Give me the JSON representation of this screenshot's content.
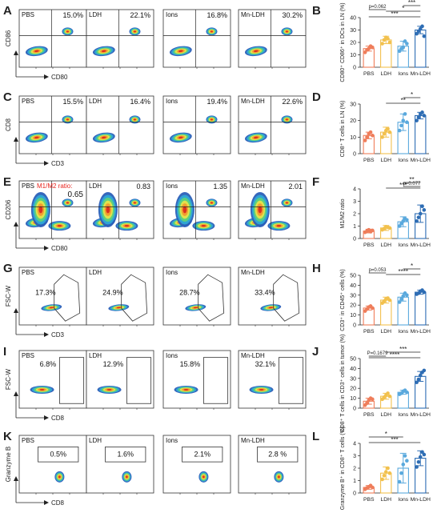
{
  "colors": {
    "PBS": "#ef7d5a",
    "LDH": "#f2c14e",
    "Ions": "#5aa9dd",
    "Mn-LDH": "#2e6db4",
    "density": [
      "#2b5fb8",
      "#2fa8d6",
      "#5fd37a",
      "#e7e14a",
      "#f29a2e",
      "#d92b1f"
    ]
  },
  "groups": [
    "PBS",
    "LDH",
    "Ions",
    "Mn-LDH"
  ],
  "flow_rows": [
    {
      "letter": "A",
      "ylabel": "CD86",
      "xlabel": "CD80",
      "gate": "quadrant",
      "values": [
        "15.0%",
        "22.1%",
        "16.8%",
        "30.2%"
      ]
    },
    {
      "letter": "C",
      "ylabel": "CD8",
      "xlabel": "CD3",
      "gate": "quadrant",
      "values": [
        "15.5%",
        "16.4%",
        "19.4%",
        "22.6%"
      ]
    },
    {
      "letter": "E",
      "ylabel": "CD206",
      "xlabel": "CD80",
      "gate": "quadrant",
      "prefix": "M1/M2 ratio:",
      "values": [
        "0.65",
        "0.83",
        "1.35",
        "2.01"
      ]
    },
    {
      "letter": "G",
      "ylabel": "FSC-W",
      "xlabel": "CD3",
      "gate": "polygon",
      "values": [
        "17.3%",
        "24.9%",
        "28.7%",
        "33.4%"
      ]
    },
    {
      "letter": "I",
      "ylabel": "FSC-W",
      "xlabel": "CD8",
      "gate": "rect",
      "values": [
        "6.8%",
        "12.9%",
        "15.8%",
        "32.1%"
      ]
    },
    {
      "letter": "K",
      "ylabel": "Granzyme B",
      "xlabel": "CD8",
      "gate": "rect_top",
      "values": [
        "0.5%",
        "1.6%",
        "2.1%",
        "2.8 %"
      ]
    }
  ],
  "chart_data": [
    {
      "letter": "B",
      "type": "bar",
      "ylabel": "CD80⁺ CD86⁺ in DCs in LN (%)",
      "ylim": [
        0,
        40
      ],
      "yticks": [
        0,
        10,
        20,
        30,
        40
      ],
      "categories": [
        "PBS",
        "LDH",
        "Ions",
        "Mn-LDH"
      ],
      "means": [
        15,
        22,
        17,
        30
      ],
      "err": [
        2,
        3,
        4,
        3
      ],
      "points": [
        [
          12,
          14,
          15,
          17,
          16
        ],
        [
          19,
          22,
          24,
          23,
          20
        ],
        [
          13,
          15,
          16,
          21,
          19
        ],
        [
          27,
          29,
          31,
          33,
          25
        ]
      ],
      "annotations": [
        {
          "a": 0,
          "b": 3,
          "label": "***"
        },
        {
          "a": 1,
          "b": 3,
          "label": "*"
        },
        {
          "a": 2,
          "b": 3,
          "label": "***"
        },
        {
          "a": 0,
          "b": 1,
          "label": "p=0.062"
        }
      ]
    },
    {
      "letter": "D",
      "type": "bar",
      "ylabel": "CD8⁺ T cells in LN (%)",
      "ylim": [
        0,
        30
      ],
      "yticks": [
        0,
        10,
        20,
        30
      ],
      "categories": [
        "PBS",
        "LDH",
        "Ions",
        "Mn-LDH"
      ],
      "means": [
        11,
        13,
        19,
        23
      ],
      "err": [
        2,
        3,
        5,
        2
      ],
      "points": [
        [
          8,
          10,
          12,
          13,
          11
        ],
        [
          10,
          12,
          14,
          15,
          13
        ],
        [
          14,
          17,
          20,
          24,
          19
        ],
        [
          20,
          22,
          24,
          25,
          23
        ]
      ],
      "annotations": [
        {
          "a": 1,
          "b": 3,
          "label": "**"
        },
        {
          "a": 2,
          "b": 3,
          "label": "*"
        }
      ]
    },
    {
      "letter": "F",
      "type": "bar",
      "ylabel": "M1/M2 ratio",
      "ylim": [
        0,
        4
      ],
      "yticks": [
        0,
        1,
        2,
        3,
        4
      ],
      "categories": [
        "PBS",
        "LDH",
        "Ions",
        "Mn-LDH"
      ],
      "means": [
        0.6,
        0.85,
        1.35,
        2.0
      ],
      "err": [
        0.15,
        0.2,
        0.4,
        0.7
      ],
      "points": [
        [
          0.5,
          0.6,
          0.7,
          0.55,
          0.65
        ],
        [
          0.7,
          0.8,
          0.95,
          0.9,
          0.85
        ],
        [
          1.0,
          1.2,
          1.4,
          1.6,
          1.5
        ],
        [
          1.4,
          1.7,
          2.0,
          2.6,
          2.3
        ]
      ],
      "annotations": [
        {
          "a": 1,
          "b": 3,
          "label": "***"
        },
        {
          "a": 2,
          "b": 3,
          "label": "**"
        },
        {
          "a": 2,
          "b": 3,
          "label": "p=0.077"
        }
      ]
    },
    {
      "letter": "H",
      "type": "bar",
      "ylabel": "CD3⁺ in CD45⁺ cells (%)",
      "ylim": [
        0,
        50
      ],
      "yticks": [
        0,
        10,
        20,
        30,
        40,
        50
      ],
      "categories": [
        "PBS",
        "LDH",
        "Ions",
        "Mn-LDH"
      ],
      "means": [
        17,
        25,
        28,
        33
      ],
      "err": [
        2,
        3,
        4,
        2
      ],
      "points": [
        [
          14,
          16,
          18,
          19,
          17
        ],
        [
          22,
          24,
          26,
          27,
          25
        ],
        [
          23,
          26,
          29,
          32,
          30
        ],
        [
          31,
          32,
          34,
          35,
          33
        ]
      ],
      "annotations": [
        {
          "a": 1,
          "b": 3,
          "label": "****"
        },
        {
          "a": 2,
          "b": 3,
          "label": "*"
        },
        {
          "a": 0,
          "b": 1,
          "label": "p=0.053"
        }
      ]
    },
    {
      "letter": "J",
      "type": "bar",
      "ylabel": "CD8⁺ T cells in CD3⁺ cells in tumor (%)",
      "ylim": [
        0,
        50
      ],
      "yticks": [
        0,
        10,
        20,
        30,
        40,
        50
      ],
      "categories": [
        "PBS",
        "LDH",
        "Ions",
        "Mn-LDH"
      ],
      "means": [
        7,
        12,
        16,
        32
      ],
      "err": [
        3,
        3,
        2,
        5
      ],
      "points": [
        [
          3,
          5,
          8,
          10,
          9
        ],
        [
          9,
          11,
          13,
          15,
          12
        ],
        [
          14,
          15,
          17,
          18,
          16
        ],
        [
          26,
          29,
          33,
          36,
          38
        ]
      ],
      "annotations": [
        {
          "a": 0,
          "b": 3,
          "label": "****"
        },
        {
          "a": 1,
          "b": 3,
          "label": "***"
        },
        {
          "a": 0,
          "b": 1,
          "label": "P=0.1679"
        }
      ]
    },
    {
      "letter": "L",
      "type": "bar",
      "ylabel": "Granzyme B⁺ in CD8⁺ T cells (%)",
      "ylim": [
        0,
        4
      ],
      "yticks": [
        0,
        1,
        2,
        3,
        4
      ],
      "categories": [
        "PBS",
        "LDH",
        "Ions",
        "Mn-LDH"
      ],
      "means": [
        0.45,
        1.6,
        2.0,
        2.8
      ],
      "err": [
        0.15,
        0.5,
        1.2,
        0.6
      ],
      "points": [
        [
          0.3,
          0.4,
          0.5,
          0.6,
          0.45
        ],
        [
          1.1,
          1.4,
          1.7,
          2.0,
          1.6
        ],
        [
          0.9,
          1.6,
          2.3,
          3.0,
          2.6
        ],
        [
          2.1,
          2.5,
          2.9,
          3.3,
          3.1
        ]
      ],
      "annotations": [
        {
          "a": 0,
          "b": 3,
          "label": "***"
        },
        {
          "a": 0,
          "b": 2,
          "label": "*"
        }
      ]
    }
  ]
}
